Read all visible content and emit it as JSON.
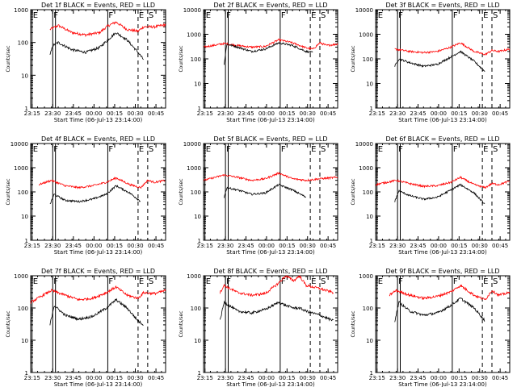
{
  "colors": {
    "events": "#000000",
    "lld": "#ff0000",
    "axis": "#000000",
    "background": "#ffffff"
  },
  "chart_data": {
    "type": "line",
    "ylabel": "Counts/sec",
    "xlabel": "Start Time (06-Jul-13 23:14:00)",
    "x_tick_labels": [
      "23:15",
      "23:30",
      "23:45",
      "00:00",
      "00:15",
      "00:30",
      "00:45"
    ],
    "x_tick_minutes": [
      1,
      16,
      31,
      46,
      61,
      76,
      91
    ],
    "xlim_minutes": [
      0,
      98
    ],
    "yscale": "log",
    "ylim": [
      1,
      1000
    ],
    "y_tick_labels": [
      "1",
      "10",
      "100",
      "1000"
    ],
    "y_tick_labels_wide": [
      "1",
      "10",
      "100",
      "1000",
      "10000"
    ],
    "series_names": [
      "Events",
      "LLD"
    ],
    "markers": [
      {
        "label": "E",
        "minute": 1,
        "style": "solid"
      },
      {
        "label": "F",
        "minute": 16,
        "style": "solid"
      },
      {
        "label": "F",
        "minute": 56,
        "style": "solid"
      },
      {
        "label": "E",
        "minute": 78,
        "style": "dashed"
      },
      {
        "label": "S",
        "minute": 85,
        "style": "dashed"
      }
    ],
    "panels": [
      {
        "title": "Det 1f BLACK = Events, RED = LLD",
        "ylim": [
          1,
          1000
        ],
        "x_end": 82,
        "lld": [
          [
            14,
            250
          ],
          [
            20,
            330
          ],
          [
            30,
            200
          ],
          [
            40,
            170
          ],
          [
            50,
            200
          ],
          [
            56,
            320
          ],
          [
            62,
            420
          ],
          [
            70,
            250
          ],
          [
            78,
            220
          ],
          [
            82,
            300
          ],
          [
            90,
            300
          ],
          [
            98,
            350
          ]
        ],
        "events": [
          [
            14,
            40
          ],
          [
            16,
            80
          ],
          [
            20,
            100
          ],
          [
            30,
            60
          ],
          [
            40,
            50
          ],
          [
            50,
            70
          ],
          [
            56,
            120
          ],
          [
            62,
            200
          ],
          [
            70,
            120
          ],
          [
            78,
            50
          ],
          [
            82,
            30
          ]
        ]
      },
      {
        "title": "Det 2f BLACK = Events, RED = LLD",
        "ylim": [
          1,
          10000
        ],
        "x_end": 98,
        "lld": [
          [
            0,
            300
          ],
          [
            15,
            420
          ],
          [
            25,
            350
          ],
          [
            35,
            300
          ],
          [
            45,
            320
          ],
          [
            55,
            600
          ],
          [
            65,
            450
          ],
          [
            75,
            280
          ],
          [
            80,
            250
          ],
          [
            85,
            450
          ],
          [
            90,
            350
          ],
          [
            98,
            400
          ]
        ],
        "events": [
          [
            15,
            60
          ],
          [
            17,
            400
          ],
          [
            25,
            300
          ],
          [
            35,
            200
          ],
          [
            45,
            250
          ],
          [
            55,
            450
          ],
          [
            65,
            350
          ],
          [
            75,
            200
          ],
          [
            80,
            180
          ]
        ]
      },
      {
        "title": "Det 3f BLACK = Events, RED = LLD",
        "ylim": [
          1,
          10000
        ],
        "x_end": 98,
        "lld": [
          [
            14,
            250
          ],
          [
            25,
            200
          ],
          [
            35,
            180
          ],
          [
            45,
            200
          ],
          [
            55,
            300
          ],
          [
            62,
            450
          ],
          [
            72,
            200
          ],
          [
            80,
            150
          ],
          [
            85,
            220
          ],
          [
            90,
            200
          ],
          [
            98,
            250
          ]
        ],
        "events": [
          [
            14,
            50
          ],
          [
            17,
            100
          ],
          [
            25,
            70
          ],
          [
            35,
            50
          ],
          [
            45,
            60
          ],
          [
            55,
            120
          ],
          [
            62,
            200
          ],
          [
            72,
            80
          ],
          [
            80,
            30
          ]
        ]
      },
      {
        "title": "Det 4f BLACK = Events, RED = LLD",
        "ylim": [
          1,
          10000
        ],
        "x_end": 98,
        "lld": [
          [
            6,
            200
          ],
          [
            15,
            300
          ],
          [
            25,
            180
          ],
          [
            35,
            150
          ],
          [
            45,
            180
          ],
          [
            55,
            250
          ],
          [
            62,
            380
          ],
          [
            72,
            200
          ],
          [
            80,
            150
          ],
          [
            85,
            300
          ],
          [
            90,
            250
          ],
          [
            98,
            300
          ]
        ],
        "events": [
          [
            14,
            30
          ],
          [
            17,
            80
          ],
          [
            25,
            45
          ],
          [
            35,
            40
          ],
          [
            45,
            50
          ],
          [
            55,
            80
          ],
          [
            62,
            180
          ],
          [
            72,
            90
          ],
          [
            80,
            40
          ]
        ]
      },
      {
        "title": "Det 5f BLACK = Events, RED = LLD",
        "ylim": [
          1,
          10000
        ],
        "x_end": 98,
        "lld": [
          [
            0,
            300
          ],
          [
            15,
            500
          ],
          [
            25,
            400
          ],
          [
            35,
            300
          ],
          [
            45,
            350
          ],
          [
            55,
            600
          ],
          [
            65,
            350
          ],
          [
            75,
            300
          ],
          [
            85,
            350
          ],
          [
            98,
            400
          ]
        ],
        "events": [
          [
            15,
            60
          ],
          [
            17,
            150
          ],
          [
            25,
            120
          ],
          [
            35,
            80
          ],
          [
            45,
            90
          ],
          [
            55,
            200
          ],
          [
            65,
            120
          ],
          [
            75,
            60
          ]
        ]
      },
      {
        "title": "Det 6f BLACK = Events, RED = LLD",
        "ylim": [
          1,
          10000
        ],
        "x_end": 98,
        "lld": [
          [
            0,
            200
          ],
          [
            15,
            300
          ],
          [
            25,
            220
          ],
          [
            35,
            170
          ],
          [
            45,
            180
          ],
          [
            55,
            250
          ],
          [
            62,
            400
          ],
          [
            72,
            200
          ],
          [
            80,
            150
          ],
          [
            85,
            220
          ],
          [
            90,
            200
          ],
          [
            98,
            280
          ]
        ],
        "events": [
          [
            14,
            40
          ],
          [
            17,
            110
          ],
          [
            25,
            70
          ],
          [
            35,
            50
          ],
          [
            45,
            60
          ],
          [
            55,
            120
          ],
          [
            62,
            200
          ],
          [
            72,
            90
          ],
          [
            80,
            30
          ]
        ]
      },
      {
        "title": "Det 7f BLACK = Events, RED = LLD",
        "ylim": [
          1,
          1000
        ],
        "x_end": 82,
        "lld": [
          [
            0,
            150
          ],
          [
            15,
            350
          ],
          [
            25,
            250
          ],
          [
            35,
            180
          ],
          [
            45,
            200
          ],
          [
            55,
            300
          ],
          [
            62,
            450
          ],
          [
            70,
            250
          ],
          [
            78,
            200
          ],
          [
            82,
            300
          ],
          [
            90,
            280
          ],
          [
            98,
            350
          ]
        ],
        "events": [
          [
            14,
            30
          ],
          [
            17,
            120
          ],
          [
            25,
            60
          ],
          [
            35,
            45
          ],
          [
            45,
            55
          ],
          [
            55,
            100
          ],
          [
            62,
            180
          ],
          [
            70,
            100
          ],
          [
            78,
            40
          ],
          [
            82,
            30
          ]
        ]
      },
      {
        "title": "Det 8f BLACK = Events, RED = LLD",
        "ylim": [
          1,
          1000
        ],
        "x_end": 95,
        "lld": [
          [
            12,
            300
          ],
          [
            15,
            500
          ],
          [
            25,
            300
          ],
          [
            35,
            250
          ],
          [
            45,
            280
          ],
          [
            55,
            600
          ],
          [
            60,
            1000
          ],
          [
            66,
            700
          ],
          [
            70,
            1000
          ],
          [
            75,
            500
          ],
          [
            85,
            400
          ],
          [
            95,
            300
          ]
        ],
        "events": [
          [
            12,
            40
          ],
          [
            15,
            150
          ],
          [
            25,
            80
          ],
          [
            35,
            70
          ],
          [
            45,
            90
          ],
          [
            55,
            150
          ],
          [
            60,
            120
          ],
          [
            66,
            100
          ],
          [
            70,
            100
          ],
          [
            75,
            80
          ],
          [
            85,
            60
          ],
          [
            95,
            40
          ]
        ]
      },
      {
        "title": "Det 9f BLACK = Events, RED = LLD",
        "ylim": [
          1,
          1000
        ],
        "x_end": 98,
        "lld": [
          [
            10,
            250
          ],
          [
            15,
            350
          ],
          [
            25,
            250
          ],
          [
            35,
            200
          ],
          [
            45,
            230
          ],
          [
            55,
            320
          ],
          [
            62,
            500
          ],
          [
            72,
            250
          ],
          [
            80,
            180
          ],
          [
            85,
            350
          ],
          [
            90,
            250
          ],
          [
            98,
            300
          ]
        ],
        "events": [
          [
            14,
            40
          ],
          [
            17,
            150
          ],
          [
            25,
            80
          ],
          [
            35,
            60
          ],
          [
            45,
            70
          ],
          [
            55,
            120
          ],
          [
            62,
            200
          ],
          [
            72,
            100
          ],
          [
            80,
            40
          ]
        ]
      }
    ]
  }
}
